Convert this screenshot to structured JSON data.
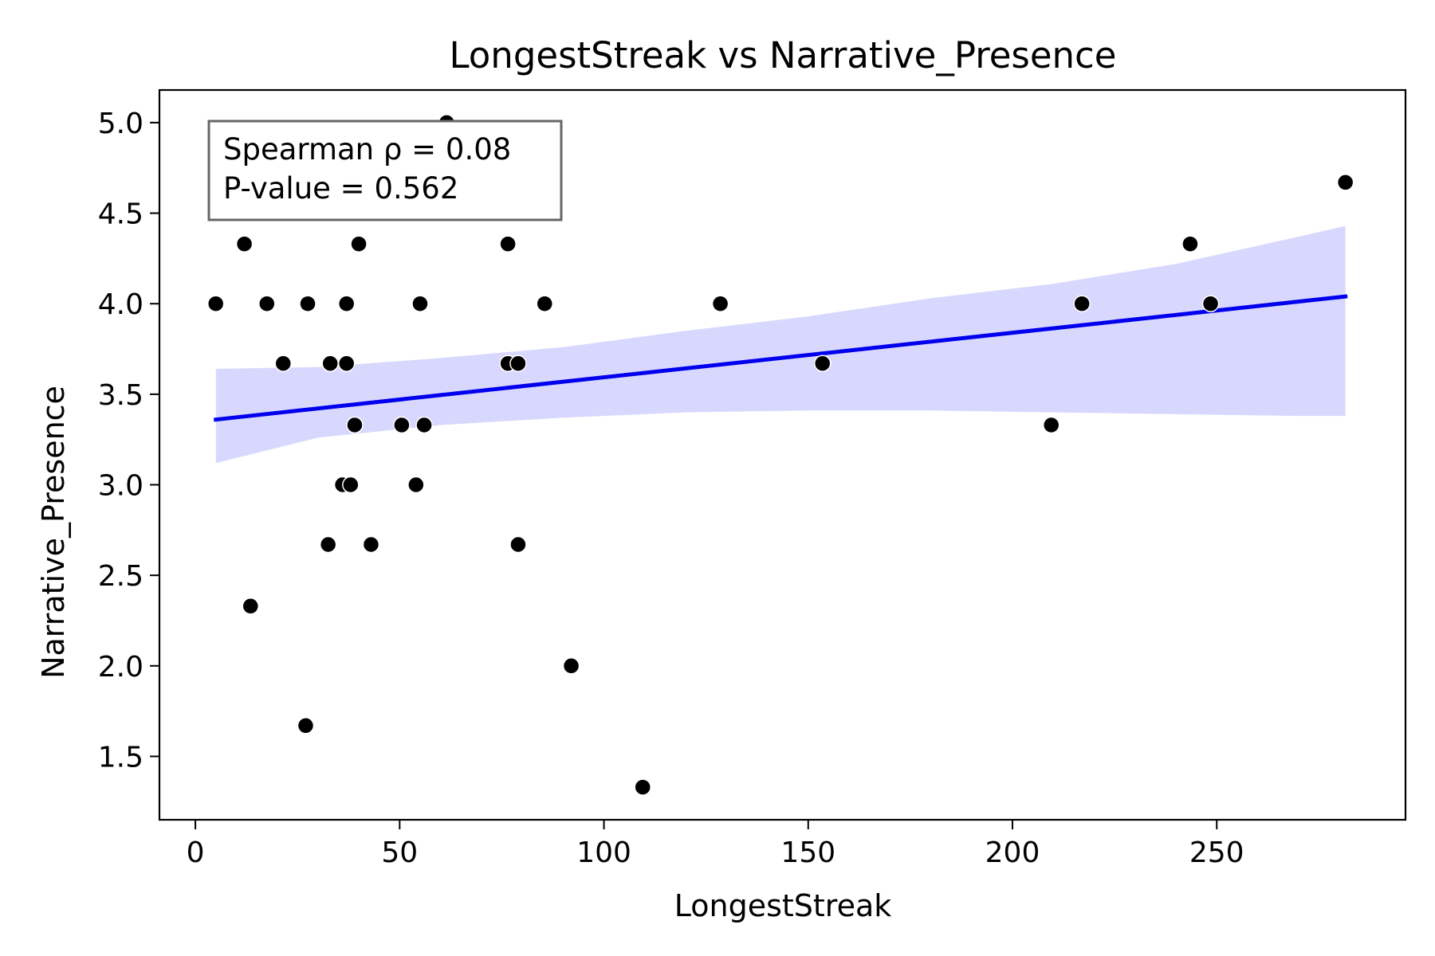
{
  "chart_data": {
    "type": "scatter",
    "title": "LongestStreak vs Narrative_Presence",
    "xlabel": "LongestStreak",
    "ylabel": "Narrative_Presence",
    "xlim": [
      -8.8,
      296.2
    ],
    "ylim": [
      1.15,
      5.18
    ],
    "x_ticks": [
      0,
      50,
      100,
      150,
      200,
      250
    ],
    "y_ticks": [
      1.5,
      2.0,
      2.5,
      3.0,
      3.5,
      4.0,
      4.5,
      5.0
    ],
    "x_tick_labels": [
      "0",
      "50",
      "100",
      "150",
      "200",
      "250"
    ],
    "y_tick_labels": [
      "1.5",
      "2.0",
      "2.5",
      "3.0",
      "3.5",
      "4.0",
      "4.5",
      "5.0"
    ],
    "grid": false,
    "points": [
      {
        "x": 5,
        "y": 4.0
      },
      {
        "x": 12,
        "y": 4.33
      },
      {
        "x": 13.5,
        "y": 2.33
      },
      {
        "x": 17.5,
        "y": 4.0
      },
      {
        "x": 21.5,
        "y": 3.67
      },
      {
        "x": 27,
        "y": 1.67
      },
      {
        "x": 27.5,
        "y": 4.0
      },
      {
        "x": 32.5,
        "y": 2.67
      },
      {
        "x": 33,
        "y": 3.67
      },
      {
        "x": 36,
        "y": 3.0
      },
      {
        "x": 37,
        "y": 4.0
      },
      {
        "x": 37,
        "y": 3.67
      },
      {
        "x": 38,
        "y": 3.0
      },
      {
        "x": 39,
        "y": 3.33
      },
      {
        "x": 40,
        "y": 4.33
      },
      {
        "x": 43,
        "y": 2.67
      },
      {
        "x": 50.5,
        "y": 3.33
      },
      {
        "x": 54,
        "y": 3.0
      },
      {
        "x": 55,
        "y": 4.0
      },
      {
        "x": 56,
        "y": 3.33
      },
      {
        "x": 61.5,
        "y": 5.0
      },
      {
        "x": 76.5,
        "y": 4.33
      },
      {
        "x": 76.5,
        "y": 3.67
      },
      {
        "x": 79,
        "y": 3.67
      },
      {
        "x": 79,
        "y": 2.67
      },
      {
        "x": 85.5,
        "y": 4.0
      },
      {
        "x": 92,
        "y": 2.0
      },
      {
        "x": 109.5,
        "y": 1.33
      },
      {
        "x": 128.5,
        "y": 4.0
      },
      {
        "x": 153.5,
        "y": 3.67
      },
      {
        "x": 209.5,
        "y": 3.33
      },
      {
        "x": 217,
        "y": 4.0
      },
      {
        "x": 243.5,
        "y": 4.33
      },
      {
        "x": 248.5,
        "y": 4.0
      },
      {
        "x": 281.5,
        "y": 4.67
      }
    ],
    "regression_line": {
      "x": [
        5,
        281.5
      ],
      "y": [
        3.36,
        4.04
      ]
    },
    "confidence_band": {
      "x": [
        5,
        30,
        60,
        90,
        120,
        150,
        180,
        210,
        240,
        270,
        281.5
      ],
      "upper": [
        3.64,
        3.65,
        3.7,
        3.76,
        3.85,
        3.93,
        4.03,
        4.11,
        4.22,
        4.37,
        4.43
      ],
      "lower": [
        3.12,
        3.26,
        3.33,
        3.37,
        3.4,
        3.41,
        3.41,
        3.4,
        3.39,
        3.38,
        3.38
      ]
    },
    "annotation": {
      "line1": "Spearman ρ = 0.08",
      "line2": "P-value = 0.562",
      "position": "top-left"
    },
    "colors": {
      "points": "#000000",
      "line": "#0000ee",
      "band": "#d8d8ff",
      "annotation_border": "#666666",
      "axes": "#000000"
    }
  }
}
